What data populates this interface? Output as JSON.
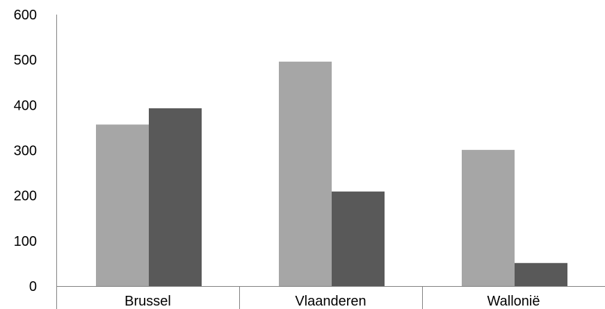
{
  "chart_data": {
    "type": "bar",
    "categories": [
      "Brussel",
      "Vlaanderen",
      "Wallonië"
    ],
    "series": [
      {
        "values": [
          357,
          496,
          301
        ],
        "color": "#a6a6a6"
      },
      {
        "values": [
          393,
          209,
          51
        ],
        "color": "#595959"
      }
    ],
    "ylim": [
      0,
      600
    ],
    "yticks": [
      0,
      100,
      200,
      300,
      400,
      500,
      600
    ],
    "grid": false,
    "legend": "none"
  }
}
